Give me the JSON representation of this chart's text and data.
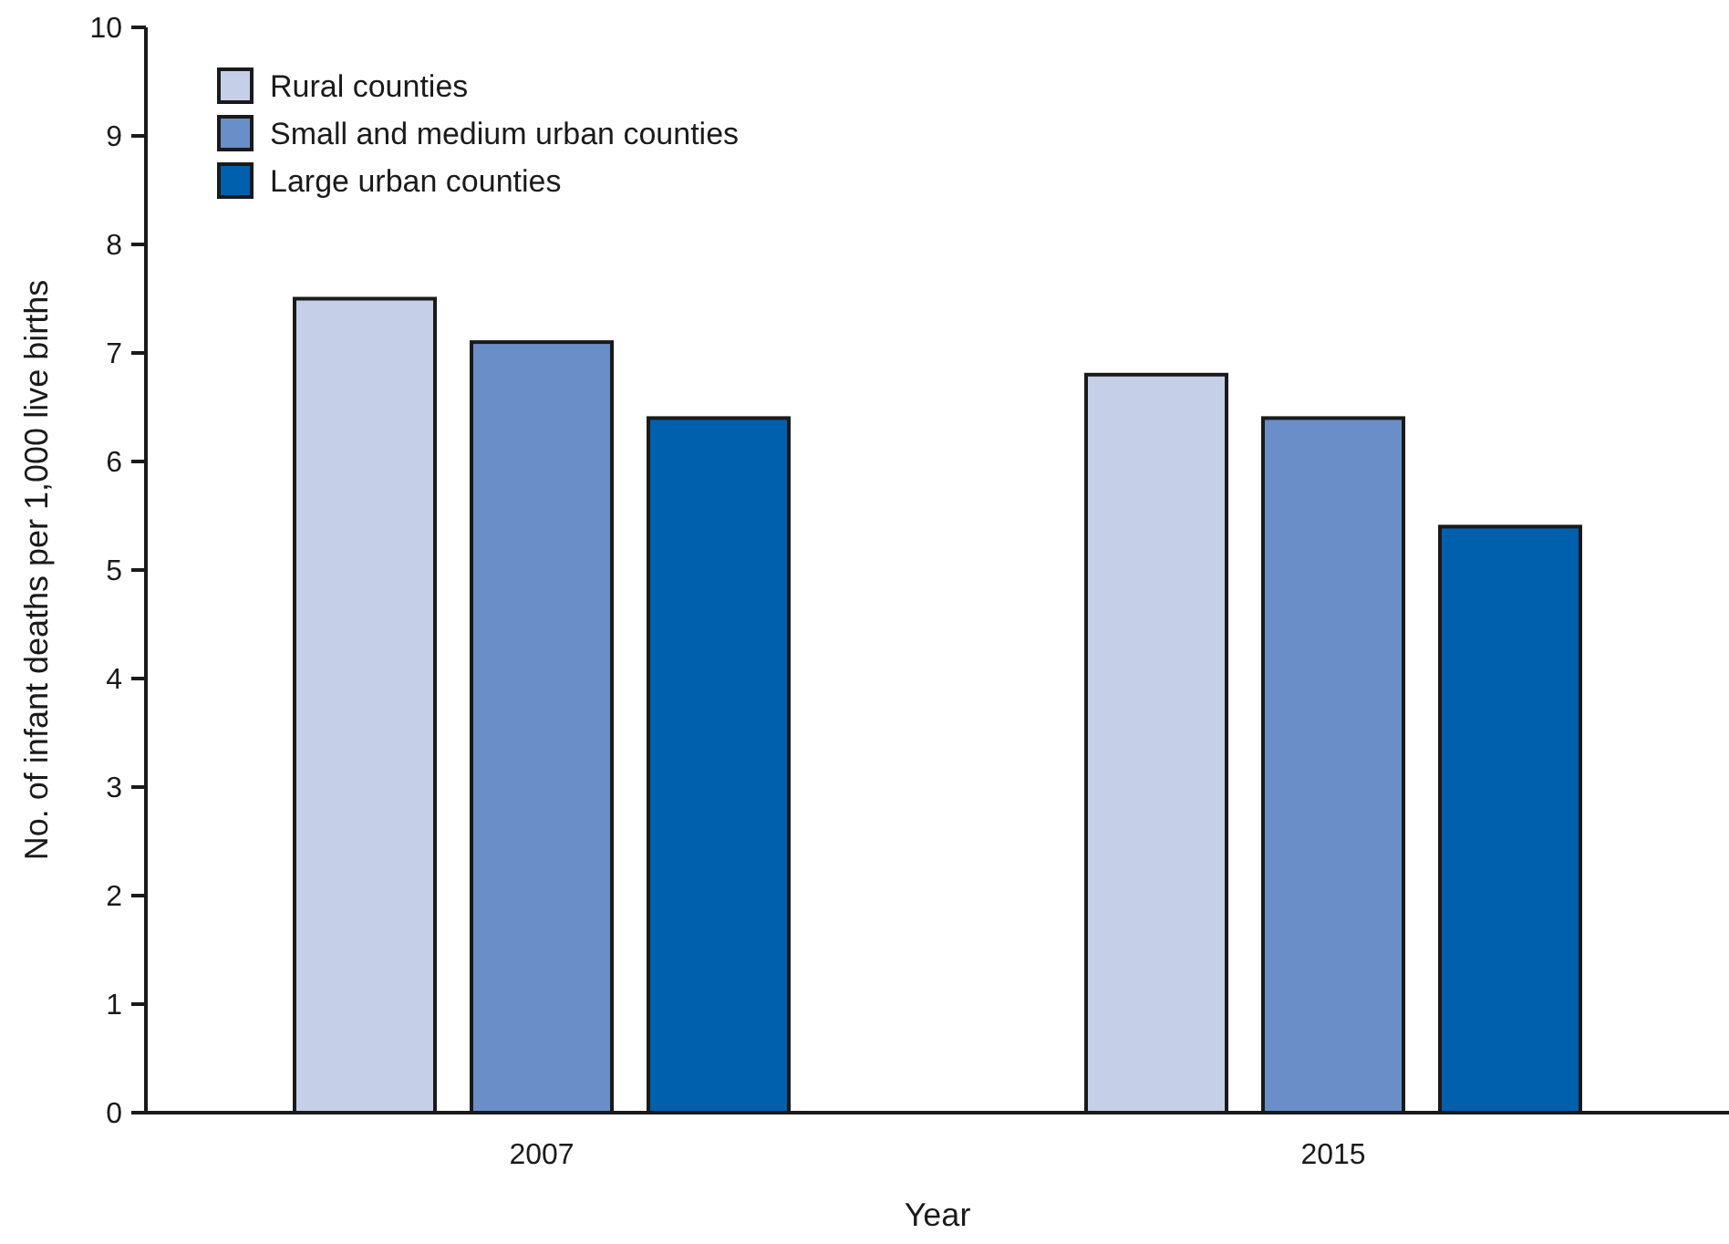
{
  "chart_data": {
    "type": "bar",
    "xlabel": "Year",
    "ylabel": "No. of infant deaths per 1,000 live births",
    "categories": [
      "2007",
      "2015"
    ],
    "series": [
      {
        "name": "Rural counties",
        "color": "#c5d0e8",
        "values": [
          7.5,
          6.8
        ]
      },
      {
        "name": "Small and medium urban counties",
        "color": "#6a8fc8",
        "values": [
          7.1,
          6.4
        ]
      },
      {
        "name": "Large urban counties",
        "color": "#0060ad",
        "values": [
          6.4,
          5.4
        ]
      }
    ],
    "ylim": [
      0,
      10
    ],
    "yticks": [
      0,
      1,
      2,
      3,
      4,
      5,
      6,
      7,
      8,
      9,
      10
    ],
    "grid": false,
    "legend": "top left"
  }
}
